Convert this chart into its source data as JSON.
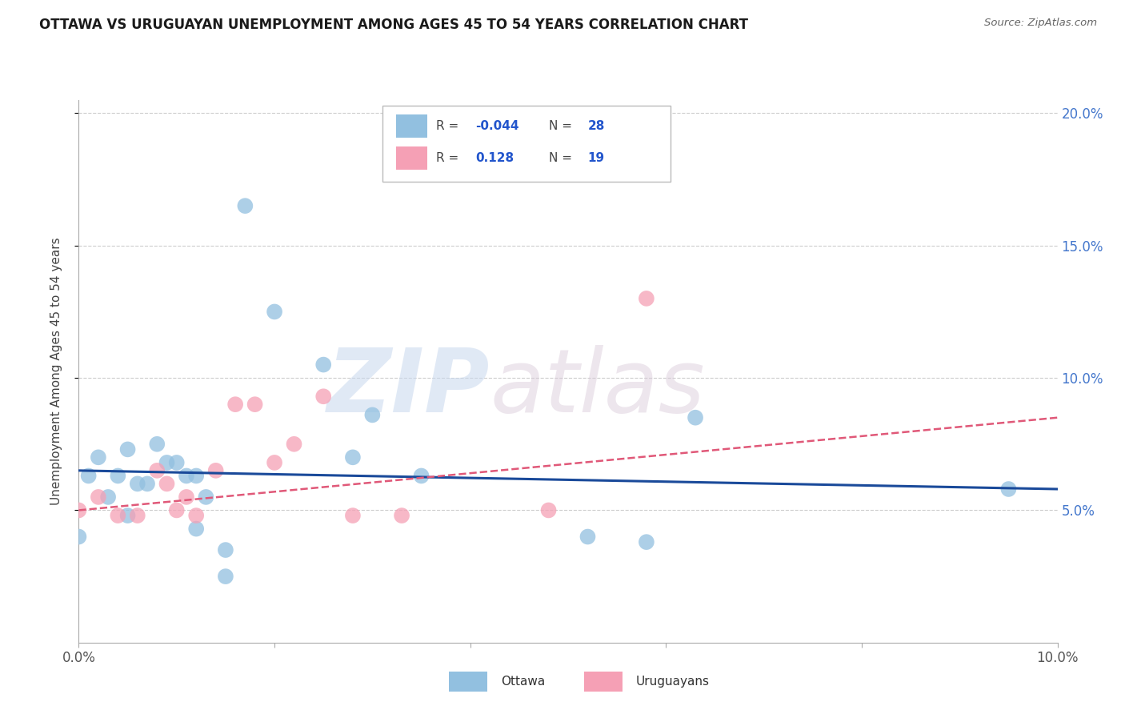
{
  "title": "OTTAWA VS URUGUAYAN UNEMPLOYMENT AMONG AGES 45 TO 54 YEARS CORRELATION CHART",
  "source": "Source: ZipAtlas.com",
  "ylabel": "Unemployment Among Ages 45 to 54 years",
  "xlim": [
    0.0,
    0.1
  ],
  "ylim": [
    0.0,
    0.205
  ],
  "ottawa_R": "-0.044",
  "ottawa_N": "28",
  "uruguayan_R": "0.128",
  "uruguayan_N": "19",
  "ottawa_color": "#92c0e0",
  "uruguayan_color": "#f5a0b5",
  "trendline_ottawa_color": "#1a4a9a",
  "trendline_uruguayan_color": "#e05878",
  "watermark_zip": "ZIP",
  "watermark_atlas": "atlas",
  "ottawa_x": [
    0.0,
    0.001,
    0.002,
    0.003,
    0.004,
    0.005,
    0.005,
    0.006,
    0.007,
    0.008,
    0.009,
    0.01,
    0.011,
    0.012,
    0.012,
    0.013,
    0.015,
    0.015,
    0.017,
    0.02,
    0.025,
    0.028,
    0.03,
    0.035,
    0.052,
    0.058,
    0.063,
    0.095
  ],
  "ottawa_y": [
    0.04,
    0.063,
    0.07,
    0.055,
    0.063,
    0.048,
    0.073,
    0.06,
    0.06,
    0.075,
    0.068,
    0.068,
    0.063,
    0.063,
    0.043,
    0.055,
    0.035,
    0.025,
    0.165,
    0.125,
    0.105,
    0.07,
    0.086,
    0.063,
    0.04,
    0.038,
    0.085,
    0.058
  ],
  "uruguayan_x": [
    0.0,
    0.002,
    0.004,
    0.006,
    0.008,
    0.009,
    0.01,
    0.011,
    0.012,
    0.014,
    0.016,
    0.018,
    0.02,
    0.022,
    0.025,
    0.028,
    0.033,
    0.048,
    0.058
  ],
  "uruguayan_y": [
    0.05,
    0.055,
    0.048,
    0.048,
    0.065,
    0.06,
    0.05,
    0.055,
    0.048,
    0.065,
    0.09,
    0.09,
    0.068,
    0.075,
    0.093,
    0.048,
    0.048,
    0.05,
    0.13
  ]
}
